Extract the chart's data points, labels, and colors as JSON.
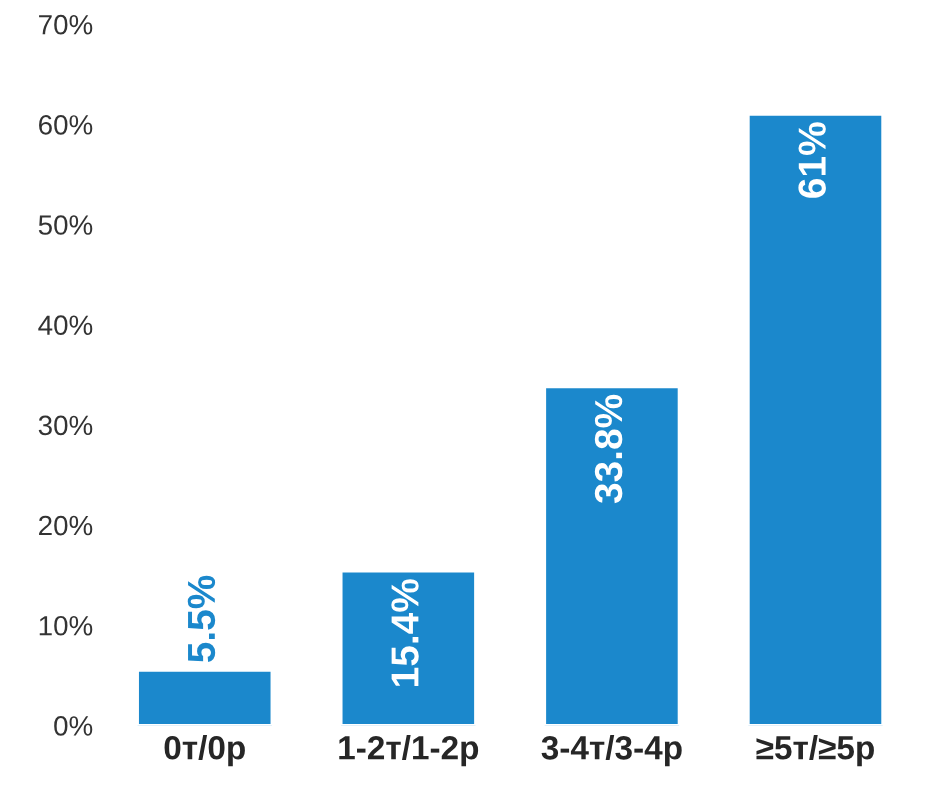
{
  "chart_data": {
    "type": "bar",
    "categories": [
      "0т/0р",
      "1-2т/1-2р",
      "3-4т/3-4р",
      "≥5т/≥5р"
    ],
    "values": [
      5.5,
      15.4,
      33.8,
      61
    ],
    "color": "#1b88cc",
    "value_labels": [
      "5.5%",
      "15.4%",
      "33.8%",
      "61%"
    ],
    "ylim": [
      0,
      70
    ],
    "yticks": [
      {
        "value": 0,
        "label": "0%"
      },
      {
        "value": 10,
        "label": "10%"
      },
      {
        "value": 20,
        "label": "20%"
      },
      {
        "value": 30,
        "label": "30%"
      },
      {
        "value": 40,
        "label": "40%"
      },
      {
        "value": 50,
        "label": "50%"
      },
      {
        "value": 60,
        "label": "60%"
      },
      {
        "value": 70,
        "label": "70%"
      }
    ],
    "grid": false,
    "legend": false
  }
}
